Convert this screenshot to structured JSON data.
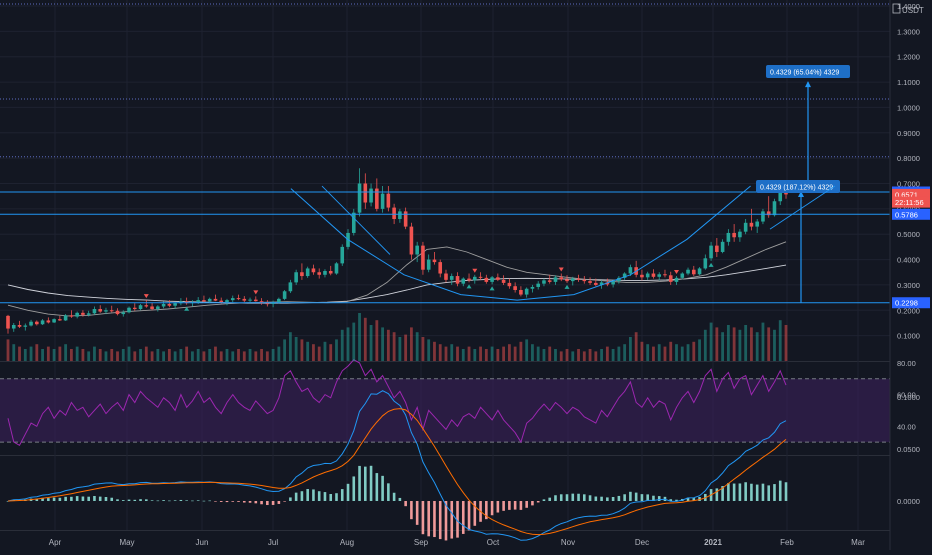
{
  "toolbar": {
    "currency": "USDT"
  },
  "colors": {
    "background": "#131722",
    "up": "#26a69a",
    "down": "#ef5350",
    "accent": "#2962ff",
    "line_blue": "#2196f3",
    "rsi_line": "#9c27b0",
    "rsi_band": "#3b1f5a",
    "grid": "#1e2230",
    "axis_text": "#b2b5be"
  },
  "chart_data": {
    "type": "candlestick",
    "panes": [
      "price",
      "rsi",
      "macd"
    ],
    "x_axis": {
      "labels": [
        "Apr",
        "May",
        "Jun",
        "Jul",
        "Aug",
        "Sep",
        "Oct",
        "Nov",
        "Dec",
        "2021",
        "Feb",
        "Mar"
      ]
    },
    "price": {
      "ylim": [
        0.0,
        1.4
      ],
      "ticks": [
        0.1,
        0.2,
        0.3,
        0.4,
        0.5,
        0.6,
        0.7,
        0.8,
        0.9,
        1.0,
        1.1,
        1.2,
        1.3,
        1.4
      ],
      "tick_labels": [
        "0.1000",
        "0.2000",
        "0.3000",
        "0.4000",
        "0.5000",
        "0.6000",
        "0.7000",
        "0.8000",
        "0.9000",
        "1.0000",
        "1.1000",
        "1.2000",
        "1.3000",
        "1.4000"
      ],
      "price_tags": [
        {
          "label": "0.6665",
          "value": 0.6665,
          "color": "#2962ff"
        },
        {
          "label": "0.6571",
          "value": 0.6571,
          "color": "#ef5350"
        },
        {
          "label": "22:11:56",
          "value": 0.6265,
          "color": "#ef5350"
        },
        {
          "label": "0.5786",
          "value": 0.5786,
          "color": "#2962ff"
        },
        {
          "label": "0.2298",
          "value": 0.2298,
          "color": "#2962ff"
        }
      ],
      "horizontal_levels": [
        1.0331,
        0.8055,
        0.6665,
        0.5786,
        0.2298
      ],
      "annotations": [
        {
          "label": "0.4329 (65.04%) 4329"
        },
        {
          "label": "0.4329 (187.12%) 4329"
        }
      ],
      "candles": [
        [
          0.178,
          0.182,
          0.108,
          0.128
        ],
        [
          0.128,
          0.15,
          0.115,
          0.142
        ],
        [
          0.142,
          0.158,
          0.13,
          0.135
        ],
        [
          0.135,
          0.148,
          0.12,
          0.14
        ],
        [
          0.14,
          0.162,
          0.136,
          0.155
        ],
        [
          0.155,
          0.16,
          0.14,
          0.145
        ],
        [
          0.145,
          0.165,
          0.142,
          0.16
        ],
        [
          0.16,
          0.172,
          0.148,
          0.152
        ],
        [
          0.152,
          0.168,
          0.15,
          0.165
        ],
        [
          0.165,
          0.178,
          0.158,
          0.16
        ],
        [
          0.16,
          0.185,
          0.158,
          0.18
        ],
        [
          0.18,
          0.2,
          0.17,
          0.175
        ],
        [
          0.175,
          0.195,
          0.168,
          0.19
        ],
        [
          0.19,
          0.2,
          0.175,
          0.182
        ],
        [
          0.182,
          0.198,
          0.176,
          0.188
        ],
        [
          0.188,
          0.215,
          0.182,
          0.205
        ],
        [
          0.205,
          0.22,
          0.19,
          0.195
        ],
        [
          0.195,
          0.21,
          0.185,
          0.2
        ],
        [
          0.2,
          0.218,
          0.192,
          0.198
        ],
        [
          0.198,
          0.208,
          0.18,
          0.185
        ],
        [
          0.185,
          0.2,
          0.175,
          0.192
        ],
        [
          0.192,
          0.215,
          0.188,
          0.21
        ],
        [
          0.21,
          0.228,
          0.198,
          0.205
        ],
        [
          0.205,
          0.225,
          0.2,
          0.22
        ],
        [
          0.22,
          0.24,
          0.21,
          0.215
        ],
        [
          0.215,
          0.23,
          0.2,
          0.205
        ],
        [
          0.205,
          0.22,
          0.195,
          0.215
        ],
        [
          0.215,
          0.235,
          0.208,
          0.225
        ],
        [
          0.225,
          0.24,
          0.212,
          0.218
        ],
        [
          0.218,
          0.232,
          0.205,
          0.228
        ],
        [
          0.228,
          0.248,
          0.22,
          0.235
        ],
        [
          0.235,
          0.25,
          0.222,
          0.228
        ],
        [
          0.228,
          0.24,
          0.215,
          0.232
        ],
        [
          0.232,
          0.252,
          0.225,
          0.24
        ],
        [
          0.24,
          0.258,
          0.23,
          0.235
        ],
        [
          0.235,
          0.25,
          0.228,
          0.245
        ],
        [
          0.245,
          0.262,
          0.236,
          0.238
        ],
        [
          0.238,
          0.25,
          0.226,
          0.232
        ],
        [
          0.232,
          0.245,
          0.22,
          0.24
        ],
        [
          0.24,
          0.258,
          0.232,
          0.248
        ],
        [
          0.248,
          0.262,
          0.24,
          0.245
        ],
        [
          0.245,
          0.256,
          0.232,
          0.238
        ],
        [
          0.238,
          0.25,
          0.228,
          0.242
        ],
        [
          0.242,
          0.255,
          0.234,
          0.236
        ],
        [
          0.236,
          0.248,
          0.222,
          0.228
        ],
        [
          0.228,
          0.24,
          0.215,
          0.225
        ],
        [
          0.225,
          0.238,
          0.212,
          0.232
        ],
        [
          0.232,
          0.25,
          0.226,
          0.245
        ],
        [
          0.245,
          0.28,
          0.24,
          0.275
        ],
        [
          0.275,
          0.32,
          0.268,
          0.31
        ],
        [
          0.31,
          0.36,
          0.3,
          0.35
        ],
        [
          0.35,
          0.385,
          0.32,
          0.335
        ],
        [
          0.335,
          0.372,
          0.328,
          0.365
        ],
        [
          0.365,
          0.38,
          0.34,
          0.35
        ],
        [
          0.35,
          0.365,
          0.325,
          0.34
        ],
        [
          0.34,
          0.362,
          0.33,
          0.355
        ],
        [
          0.355,
          0.375,
          0.338,
          0.345
        ],
        [
          0.345,
          0.39,
          0.34,
          0.385
        ],
        [
          0.385,
          0.46,
          0.375,
          0.45
        ],
        [
          0.45,
          0.52,
          0.44,
          0.505
        ],
        [
          0.505,
          0.6,
          0.495,
          0.585
        ],
        [
          0.585,
          0.76,
          0.57,
          0.7
        ],
        [
          0.7,
          0.74,
          0.6,
          0.625
        ],
        [
          0.625,
          0.7,
          0.61,
          0.68
        ],
        [
          0.68,
          0.72,
          0.59,
          0.6
        ],
        [
          0.6,
          0.69,
          0.585,
          0.66
        ],
        [
          0.66,
          0.69,
          0.59,
          0.605
        ],
        [
          0.605,
          0.62,
          0.54,
          0.56
        ],
        [
          0.56,
          0.6,
          0.545,
          0.59
        ],
        [
          0.59,
          0.605,
          0.52,
          0.53
        ],
        [
          0.53,
          0.545,
          0.4,
          0.42
        ],
        [
          0.42,
          0.47,
          0.39,
          0.455
        ],
        [
          0.455,
          0.47,
          0.34,
          0.36
        ],
        [
          0.36,
          0.42,
          0.35,
          0.4
        ],
        [
          0.4,
          0.43,
          0.38,
          0.39
        ],
        [
          0.39,
          0.4,
          0.33,
          0.345
        ],
        [
          0.345,
          0.36,
          0.31,
          0.32
        ],
        [
          0.32,
          0.345,
          0.3,
          0.335
        ],
        [
          0.335,
          0.35,
          0.295,
          0.305
        ],
        [
          0.305,
          0.33,
          0.295,
          0.325
        ],
        [
          0.325,
          0.345,
          0.31,
          0.318
        ],
        [
          0.318,
          0.34,
          0.305,
          0.332
        ],
        [
          0.332,
          0.35,
          0.32,
          0.328
        ],
        [
          0.328,
          0.34,
          0.305,
          0.312
        ],
        [
          0.312,
          0.335,
          0.302,
          0.33
        ],
        [
          0.33,
          0.345,
          0.315,
          0.32
        ],
        [
          0.32,
          0.338,
          0.3,
          0.308
        ],
        [
          0.308,
          0.325,
          0.285,
          0.295
        ],
        [
          0.295,
          0.31,
          0.27,
          0.28
        ],
        [
          0.28,
          0.295,
          0.255,
          0.262
        ],
        [
          0.262,
          0.29,
          0.25,
          0.285
        ],
        [
          0.285,
          0.3,
          0.27,
          0.292
        ],
        [
          0.292,
          0.315,
          0.282,
          0.305
        ],
        [
          0.305,
          0.325,
          0.295,
          0.318
        ],
        [
          0.318,
          0.34,
          0.305,
          0.312
        ],
        [
          0.312,
          0.338,
          0.3,
          0.33
        ],
        [
          0.33,
          0.345,
          0.315,
          0.322
        ],
        [
          0.322,
          0.338,
          0.308,
          0.315
        ],
        [
          0.315,
          0.332,
          0.298,
          0.325
        ],
        [
          0.325,
          0.34,
          0.312,
          0.32
        ],
        [
          0.32,
          0.335,
          0.305,
          0.315
        ],
        [
          0.315,
          0.33,
          0.3,
          0.308
        ],
        [
          0.308,
          0.325,
          0.295,
          0.3
        ],
        [
          0.3,
          0.318,
          0.285,
          0.31
        ],
        [
          0.31,
          0.325,
          0.295,
          0.302
        ],
        [
          0.302,
          0.32,
          0.29,
          0.315
        ],
        [
          0.315,
          0.335,
          0.305,
          0.328
        ],
        [
          0.328,
          0.35,
          0.32,
          0.345
        ],
        [
          0.345,
          0.38,
          0.335,
          0.37
        ],
        [
          0.37,
          0.395,
          0.33,
          0.34
        ],
        [
          0.34,
          0.36,
          0.318,
          0.33
        ],
        [
          0.33,
          0.352,
          0.32,
          0.345
        ],
        [
          0.345,
          0.362,
          0.325,
          0.332
        ],
        [
          0.332,
          0.35,
          0.318,
          0.342
        ],
        [
          0.342,
          0.36,
          0.33,
          0.338
        ],
        [
          0.338,
          0.352,
          0.3,
          0.312
        ],
        [
          0.312,
          0.335,
          0.3,
          0.328
        ],
        [
          0.328,
          0.35,
          0.322,
          0.345
        ],
        [
          0.345,
          0.368,
          0.338,
          0.36
        ],
        [
          0.36,
          0.375,
          0.335,
          0.342
        ],
        [
          0.342,
          0.37,
          0.338,
          0.365
        ],
        [
          0.365,
          0.42,
          0.36,
          0.405
        ],
        [
          0.405,
          0.47,
          0.395,
          0.455
        ],
        [
          0.455,
          0.485,
          0.41,
          0.43
        ],
        [
          0.43,
          0.48,
          0.425,
          0.47
        ],
        [
          0.47,
          0.52,
          0.455,
          0.505
        ],
        [
          0.505,
          0.54,
          0.47,
          0.488
        ],
        [
          0.488,
          0.52,
          0.47,
          0.51
        ],
        [
          0.51,
          0.56,
          0.5,
          0.545
        ],
        [
          0.545,
          0.6,
          0.515,
          0.53
        ],
        [
          0.53,
          0.56,
          0.505,
          0.55
        ],
        [
          0.55,
          0.6,
          0.54,
          0.59
        ],
        [
          0.59,
          0.65,
          0.565,
          0.575
        ],
        [
          0.575,
          0.64,
          0.57,
          0.63
        ],
        [
          0.63,
          0.7,
          0.615,
          0.69
        ],
        [
          0.69,
          0.705,
          0.64,
          0.657
        ]
      ],
      "volume": [
        0.9,
        0.7,
        0.6,
        0.5,
        0.6,
        0.7,
        0.5,
        0.6,
        0.5,
        0.6,
        0.7,
        0.5,
        0.6,
        0.5,
        0.4,
        0.6,
        0.5,
        0.4,
        0.5,
        0.4,
        0.5,
        0.6,
        0.4,
        0.5,
        0.6,
        0.4,
        0.5,
        0.4,
        0.5,
        0.4,
        0.5,
        0.6,
        0.4,
        0.5,
        0.4,
        0.5,
        0.6,
        0.4,
        0.5,
        0.4,
        0.5,
        0.4,
        0.5,
        0.4,
        0.5,
        0.4,
        0.5,
        0.6,
        0.9,
        1.2,
        1.0,
        0.9,
        0.8,
        0.7,
        0.6,
        0.8,
        0.7,
        0.9,
        1.3,
        1.4,
        1.6,
        2.0,
        1.8,
        1.5,
        1.7,
        1.4,
        1.3,
        1.2,
        1.0,
        1.1,
        1.4,
        1.2,
        1.0,
        0.9,
        0.8,
        0.7,
        0.6,
        0.7,
        0.6,
        0.5,
        0.6,
        0.5,
        0.6,
        0.5,
        0.6,
        0.5,
        0.6,
        0.7,
        0.6,
        0.8,
        0.9,
        0.7,
        0.6,
        0.5,
        0.6,
        0.5,
        0.4,
        0.5,
        0.4,
        0.5,
        0.4,
        0.5,
        0.4,
        0.5,
        0.6,
        0.5,
        0.6,
        0.7,
        1.0,
        1.2,
        0.8,
        0.7,
        0.6,
        0.7,
        0.6,
        0.8,
        0.7,
        0.6,
        0.7,
        0.8,
        0.9,
        1.3,
        1.6,
        1.4,
        1.2,
        1.5,
        1.4,
        1.3,
        1.5,
        1.4,
        1.2,
        1.6,
        1.4,
        1.3,
        1.7,
        1.5
      ],
      "sma_long": [
        0.3,
        0.282,
        0.268,
        0.258,
        0.252,
        0.247,
        0.243,
        0.24,
        0.236,
        0.234,
        0.232,
        0.23,
        0.228,
        0.228,
        0.228,
        0.23,
        0.232,
        0.236,
        0.248,
        0.262,
        0.28,
        0.3,
        0.31,
        0.318,
        0.322,
        0.325,
        0.326,
        0.325,
        0.323,
        0.322,
        0.32,
        0.318,
        0.318,
        0.32,
        0.324,
        0.33,
        0.34,
        0.352,
        0.365,
        0.378
      ],
      "ema_mid": [
        0.22,
        0.2,
        0.185,
        0.178,
        0.18,
        0.188,
        0.195,
        0.2,
        0.205,
        0.212,
        0.22,
        0.226,
        0.23,
        0.232,
        0.234,
        0.232,
        0.23,
        0.234,
        0.26,
        0.31,
        0.38,
        0.44,
        0.45,
        0.43,
        0.4,
        0.37,
        0.35,
        0.34,
        0.33,
        0.322,
        0.315,
        0.31,
        0.31,
        0.315,
        0.325,
        0.34,
        0.37,
        0.405,
        0.44,
        0.47
      ],
      "rounding_bottom": [
        [
          0.4,
          0.68
        ],
        [
          0.48,
          0.48
        ],
        [
          0.56,
          0.34
        ],
        [
          0.64,
          0.262
        ],
        [
          0.72,
          0.24
        ],
        [
          0.8,
          0.262
        ],
        [
          0.88,
          0.34
        ],
        [
          0.96,
          0.48
        ],
        [
          1.05,
          0.69
        ]
      ],
      "marker_positions": [
        0.18,
        0.23,
        0.32,
        0.59,
        0.6,
        0.62,
        0.71,
        0.72,
        0.86,
        0.9
      ]
    },
    "rsi": {
      "ylim": [
        25,
        85
      ],
      "tick_labels": [
        "40.00",
        "60.00",
        "80.00"
      ],
      "ticks": [
        40,
        60,
        80
      ],
      "bands": [
        70,
        30
      ],
      "values": [
        45,
        30,
        28,
        35,
        42,
        40,
        48,
        52,
        45,
        50,
        47,
        55,
        50,
        52,
        46,
        50,
        54,
        48,
        52,
        55,
        50,
        60,
        55,
        62,
        58,
        55,
        52,
        58,
        55,
        50,
        60,
        52,
        56,
        62,
        55,
        58,
        52,
        48,
        55,
        60,
        55,
        52,
        50,
        56,
        52,
        48,
        50,
        58,
        72,
        75,
        68,
        62,
        64,
        58,
        55,
        60,
        58,
        68,
        75,
        78,
        82,
        80,
        72,
        76,
        68,
        72,
        65,
        58,
        62,
        55,
        44,
        52,
        38,
        50,
        46,
        42,
        38,
        44,
        40,
        46,
        48,
        45,
        52,
        48,
        44,
        50,
        44,
        40,
        36,
        30,
        42,
        45,
        50,
        54,
        50,
        55,
        52,
        48,
        52,
        50,
        46,
        44,
        42,
        50,
        46,
        52,
        58,
        62,
        68,
        55,
        52,
        58,
        52,
        56,
        54,
        44,
        52,
        58,
        62,
        55,
        62,
        72,
        76,
        62,
        70,
        74,
        64,
        70,
        72,
        60,
        66,
        72,
        62,
        68,
        75,
        66
      ]
    },
    "macd": {
      "ylim": [
        -0.03,
        0.1
      ],
      "tick_labels": [
        "0.0000",
        "0.0500",
        "0.1000"
      ],
      "ticks": [
        0.0,
        0.05,
        0.1
      ]
    }
  }
}
